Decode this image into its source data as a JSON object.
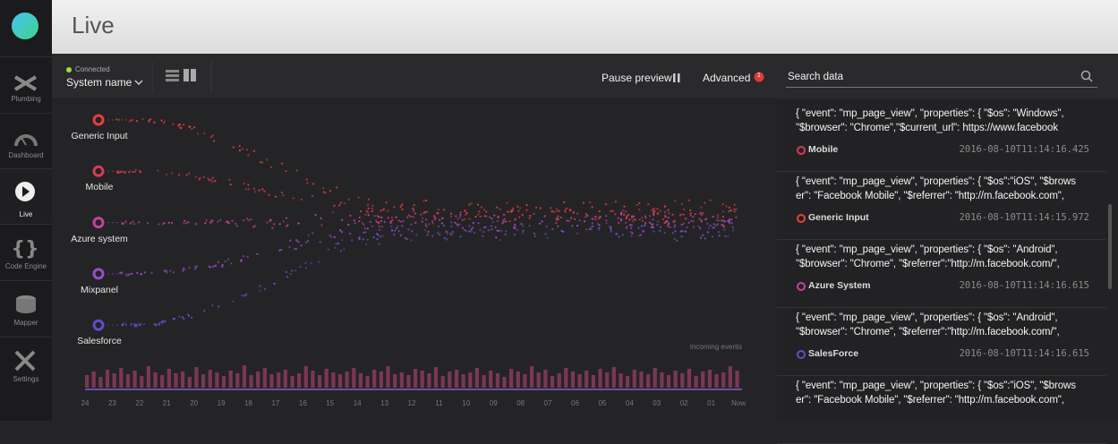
{
  "header": {
    "title": "Live"
  },
  "nav": [
    "Plumbing",
    "Dashboard",
    "Live",
    "Code Engine",
    "Mapper",
    "Settings"
  ],
  "toolbar": {
    "status": "Connected",
    "system": "System name",
    "pause": "Pause preview",
    "advanced": "Advanced",
    "badge": 1,
    "search_placeholder": "Search data"
  },
  "sources": [
    {
      "label": "Generic Input",
      "color": "#e5403a"
    },
    {
      "label": "Mobile",
      "color": "#d83c52"
    },
    {
      "label": "Azure system",
      "color": "#c2449a"
    },
    {
      "label": "Mixpanel",
      "color": "#9a4ccc"
    },
    {
      "label": "Salesforce",
      "color": "#5e4ed0"
    }
  ],
  "incoming_events": {
    "label": "Incoming events",
    "ticks": [
      "24",
      "23",
      "22",
      "21",
      "20",
      "19",
      "18",
      "17",
      "16",
      "15",
      "14",
      "13",
      "12",
      "11",
      "10",
      "09",
      "08",
      "07",
      "06",
      "05",
      "04",
      "03",
      "02",
      "01",
      "Now"
    ],
    "color": "#8c3a60",
    "values": [
      14,
      18,
      12,
      20,
      16,
      22,
      15,
      19,
      13,
      24,
      17,
      14,
      21,
      16,
      18,
      12,
      23,
      15,
      20,
      17,
      13,
      19,
      16,
      25,
      14,
      18,
      22,
      15,
      17,
      20,
      13,
      16,
      24,
      19,
      14,
      21,
      17,
      15,
      18,
      22,
      16,
      13,
      20,
      18,
      24,
      15,
      17,
      14,
      21,
      19,
      16,
      23,
      13,
      18,
      20,
      15,
      17,
      22,
      14,
      19,
      16,
      12,
      21,
      18,
      15,
      24,
      17,
      20,
      13,
      16,
      22,
      18,
      15,
      19,
      14,
      21,
      17,
      23,
      16,
      13,
      20,
      18,
      15,
      22,
      17,
      14,
      19,
      16,
      21,
      13,
      18,
      20,
      15,
      17,
      24,
      19
    ]
  },
  "events": [
    {
      "lines": [
        "{ \"event\": \"mp_page_view\", \"properties\": { \"$os\": \"Windows\",",
        "\"$browser\": \"Chrome\",\"$current_url\": https://www.facebook"
      ],
      "source": "Mobile",
      "color": "#d83c52",
      "timestamp": "2016-08-10T11:14:16.425"
    },
    {
      "lines": [
        "{ \"event\": \"mp_page_view\", \"properties\": { \"$os\":\"iOS\", \"$brows",
        "er\": \"Facebook Mobile\", \"$referrer\": \"http://m.facebook.com\","
      ],
      "source": "Generic Input",
      "color": "#e5403a",
      "timestamp": "2016-08-10T11:14:15.972"
    },
    {
      "lines": [
        "{ \"event\": \"mp_page_view\", \"properties\": { \"$os\": \"Android\",",
        "\"$browser\": \"Chrome\", \"$referrer\":\"http://m.facebook.com/\","
      ],
      "source": "Azure System",
      "color": "#c2449a",
      "timestamp": "2016-08-10T11:14:16.615"
    },
    {
      "lines": [
        "{ \"event\": \"mp_page_view\", \"properties\": { \"$os\": \"Android\",",
        "\"$browser\": \"Chrome\", \"$referrer\":\"http://m.facebook.com/\","
      ],
      "source": "SalesForce",
      "color": "#5e4ed0",
      "timestamp": "2016-08-10T11:14:16.615"
    },
    {
      "lines": [
        "{ \"event\": \"mp_page_view\", \"properties\": { \"$os\":\"iOS\", \"$brows",
        "er\": \"Facebook Mobile\", \"$referrer\": \"http://m.facebook.com\","
      ]
    }
  ]
}
